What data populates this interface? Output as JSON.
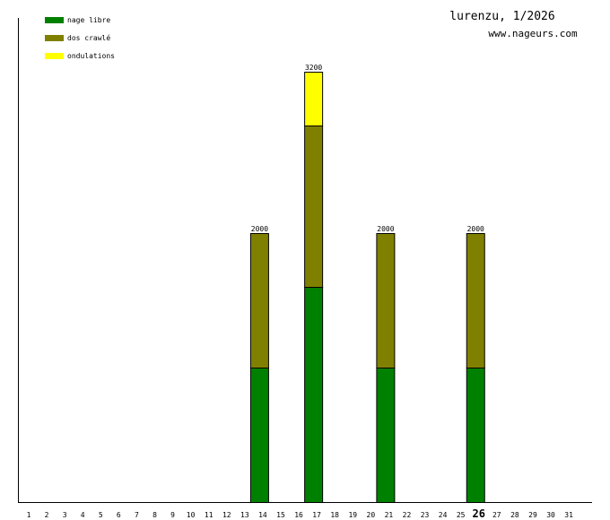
{
  "chart_data": {
    "type": "bar",
    "stacked": true,
    "title": "lurenzu, 1/2026",
    "subtitle": "www.nageurs.com",
    "categories": [
      "1",
      "2",
      "3",
      "4",
      "5",
      "6",
      "7",
      "8",
      "9",
      "10",
      "11",
      "12",
      "13",
      "14",
      "15",
      "16",
      "17",
      "18",
      "19",
      "20",
      "21",
      "22",
      "23",
      "24",
      "25",
      "26",
      "27",
      "28",
      "29",
      "30",
      "31"
    ],
    "bold_category": "26",
    "series": [
      {
        "name": "nage libre",
        "color": "#008000",
        "values": [
          0,
          0,
          0,
          0,
          0,
          0,
          0,
          0,
          0,
          0,
          0,
          0,
          0,
          1000,
          0,
          0,
          1600,
          0,
          0,
          0,
          1000,
          0,
          0,
          0,
          0,
          1000,
          0,
          0,
          0,
          0,
          0
        ]
      },
      {
        "name": "dos crawlé",
        "color": "#808000",
        "values": [
          0,
          0,
          0,
          0,
          0,
          0,
          0,
          0,
          0,
          0,
          0,
          0,
          0,
          1000,
          0,
          0,
          1200,
          0,
          0,
          0,
          1000,
          0,
          0,
          0,
          0,
          1000,
          0,
          0,
          0,
          0,
          0
        ]
      },
      {
        "name": "ondulations",
        "color": "#ffff00",
        "values": [
          0,
          0,
          0,
          0,
          0,
          0,
          0,
          0,
          0,
          0,
          0,
          0,
          0,
          0,
          0,
          0,
          400,
          0,
          0,
          0,
          0,
          0,
          0,
          0,
          0,
          0,
          0,
          0,
          0,
          0,
          0
        ]
      }
    ],
    "totals": [
      null,
      null,
      null,
      null,
      null,
      null,
      null,
      null,
      null,
      null,
      null,
      null,
      null,
      2000,
      null,
      null,
      3200,
      null,
      null,
      null,
      2000,
      null,
      null,
      null,
      null,
      2000,
      null,
      null,
      null,
      null,
      null
    ],
    "ylim": [
      0,
      3600
    ]
  }
}
